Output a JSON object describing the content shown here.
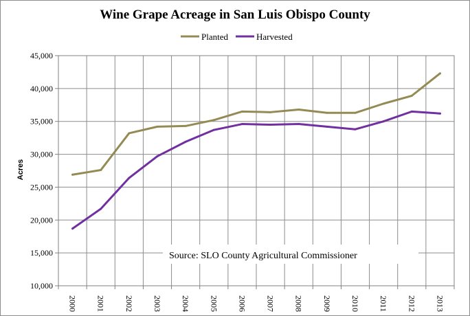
{
  "chart_data": {
    "type": "line",
    "title": "Wine Grape Acreage in San Luis Obispo County",
    "ylabel": "Acres",
    "xlabel": "",
    "x": [
      "2000",
      "2001",
      "2002",
      "2003",
      "2004",
      "2005",
      "2006",
      "2007",
      "2008",
      "2009",
      "2010",
      "2011",
      "2012",
      "2013"
    ],
    "ylim": [
      10000,
      45000
    ],
    "y_ticks": [
      "10,000",
      "15,000",
      "20,000",
      "25,000",
      "30,000",
      "35,000",
      "40,000",
      "45,000"
    ],
    "y_tick_values": [
      10000,
      15000,
      20000,
      25000,
      30000,
      35000,
      40000,
      45000
    ],
    "grid": true,
    "legend_position": "top-center",
    "annotation": "Source: SLO County Agricultural Commissioner",
    "series": [
      {
        "name": "Planted",
        "color": "#948a54",
        "values": [
          26900,
          27600,
          33200,
          34200,
          34300,
          35200,
          36500,
          36400,
          36800,
          36300,
          36300,
          37700,
          38900,
          42300
        ]
      },
      {
        "name": "Harvested",
        "color": "#7030a0",
        "values": [
          18700,
          21700,
          26400,
          29700,
          31900,
          33700,
          34600,
          34500,
          34600,
          34200,
          33800,
          35000,
          36500,
          36200
        ]
      }
    ]
  }
}
